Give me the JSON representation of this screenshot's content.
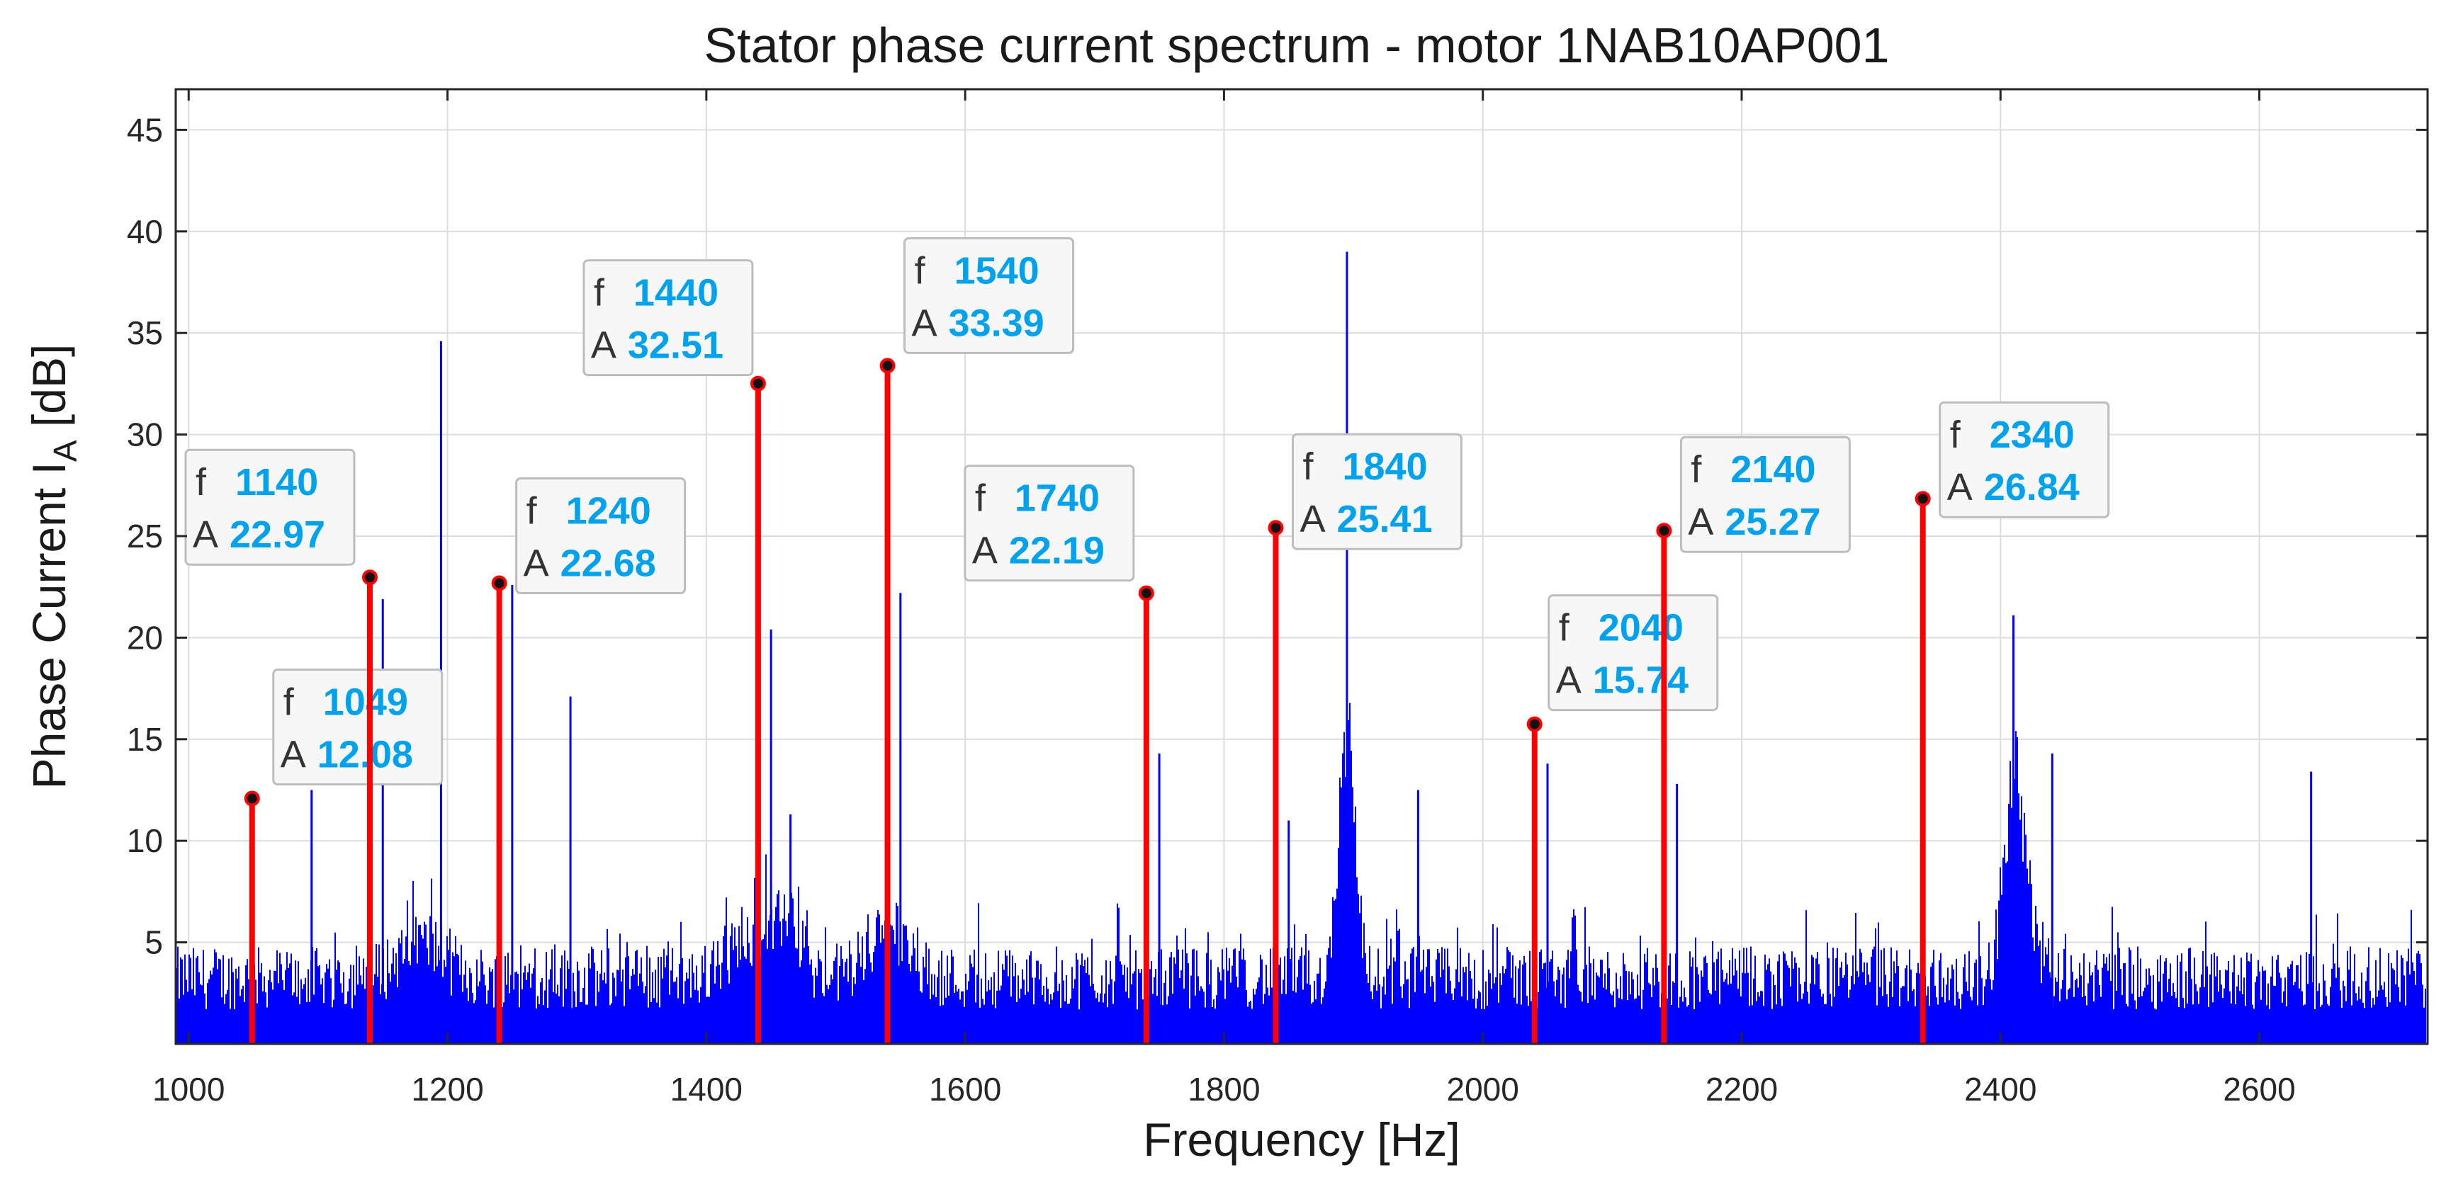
{
  "chart_data": {
    "type": "line",
    "title": "Stator phase current spectrum - motor 1NAB10AP001",
    "xlabel": "Frequency [Hz]",
    "ylabel": "Phase Current I",
    "ylabel_subscript": "A",
    "ylabel_suffix": " [dB]",
    "xlim": [
      990,
      2730
    ],
    "ylim": [
      0,
      47
    ],
    "xticks": [
      1000,
      1200,
      1400,
      1600,
      1800,
      2000,
      2200,
      2400,
      2600
    ],
    "yticks": [
      5,
      10,
      15,
      20,
      25,
      30,
      35,
      40,
      45
    ],
    "grid": true,
    "colors": {
      "spectrum": "#0000ff",
      "marker": "#ff0000",
      "value_text": "#00a2ed",
      "label_text": "#333333"
    },
    "spectrum_peaks": [
      {
        "f": 1049,
        "A": 12.1
      },
      {
        "f": 1095,
        "A": 12.5
      },
      {
        "f": 1140,
        "A": 22.9
      },
      {
        "f": 1150,
        "A": 21.9
      },
      {
        "f": 1195,
        "A": 34.6
      },
      {
        "f": 1240,
        "A": 22.6
      },
      {
        "f": 1250,
        "A": 22.6
      },
      {
        "f": 1295,
        "A": 17.1
      },
      {
        "f": 1440,
        "A": 32.4
      },
      {
        "f": 1450,
        "A": 20.4
      },
      {
        "f": 1465,
        "A": 11.3
      },
      {
        "f": 1540,
        "A": 33.3
      },
      {
        "f": 1550,
        "A": 22.2
      },
      {
        "f": 1740,
        "A": 22.1
      },
      {
        "f": 1750,
        "A": 14.3
      },
      {
        "f": 1840,
        "A": 25.3
      },
      {
        "f": 1850,
        "A": 11.0
      },
      {
        "f": 1895,
        "A": 39.0
      },
      {
        "f": 1950,
        "A": 12.5
      },
      {
        "f": 2040,
        "A": 15.7
      },
      {
        "f": 2050,
        "A": 13.8
      },
      {
        "f": 2140,
        "A": 25.2
      },
      {
        "f": 2150,
        "A": 12.8
      },
      {
        "f": 2340,
        "A": 26.8
      },
      {
        "f": 2410,
        "A": 21.1
      },
      {
        "f": 2440,
        "A": 14.3
      },
      {
        "f": 2640,
        "A": 13.4
      }
    ],
    "humps": [
      {
        "f": 1895,
        "A": 14,
        "width": 9
      },
      {
        "f": 2412,
        "A": 11,
        "width": 12
      },
      {
        "f": 1440,
        "A": 3,
        "width": 25
      },
      {
        "f": 1462,
        "A": 4,
        "width": 12
      },
      {
        "f": 1540,
        "A": 2.5,
        "width": 25
      },
      {
        "f": 1180,
        "A": 2,
        "width": 25
      }
    ],
    "markers": [
      {
        "f": "1049",
        "A": "12.08"
      },
      {
        "f": "1140",
        "A": "22.97"
      },
      {
        "f": "1240",
        "A": "22.68"
      },
      {
        "f": "1440",
        "A": "32.51"
      },
      {
        "f": "1540",
        "A": "33.39"
      },
      {
        "f": "1740",
        "A": "22.19"
      },
      {
        "f": "1840",
        "A": "25.41"
      },
      {
        "f": "2040",
        "A": "15.74"
      },
      {
        "f": "2140",
        "A": "25.27"
      },
      {
        "f": "2340",
        "A": "26.84"
      }
    ],
    "marker_label_f": "f",
    "marker_label_A": "A"
  }
}
